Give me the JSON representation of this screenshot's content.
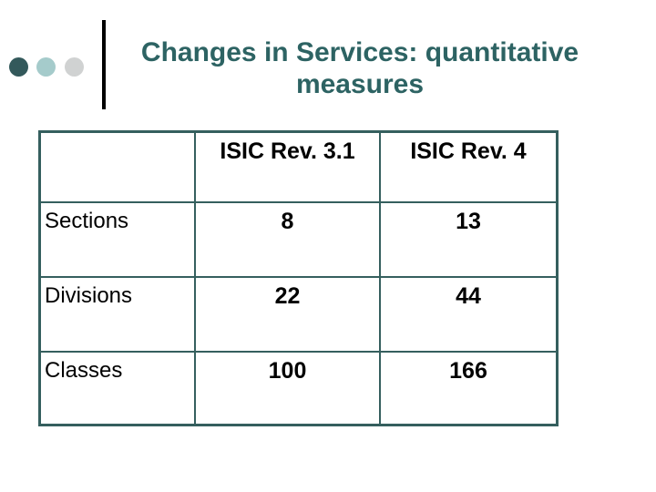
{
  "decor": {
    "bullet_colors": [
      "#33595b",
      "#a5cbcb",
      "#d0d2d2"
    ],
    "divider_color": "#000000"
  },
  "title": {
    "line1": "Changes in Services: quantitative",
    "line2": "measures",
    "color": "#2d6363"
  },
  "table": {
    "border_color": "#355f5e",
    "header": [
      "",
      "ISIC Rev. 3.1",
      "ISIC Rev. 4"
    ],
    "rows": [
      {
        "label": "Sections",
        "values": [
          "8",
          "13"
        ]
      },
      {
        "label": "Divisions",
        "values": [
          "22",
          "44"
        ]
      },
      {
        "label": "Classes",
        "values": [
          "100",
          "166"
        ]
      }
    ]
  }
}
